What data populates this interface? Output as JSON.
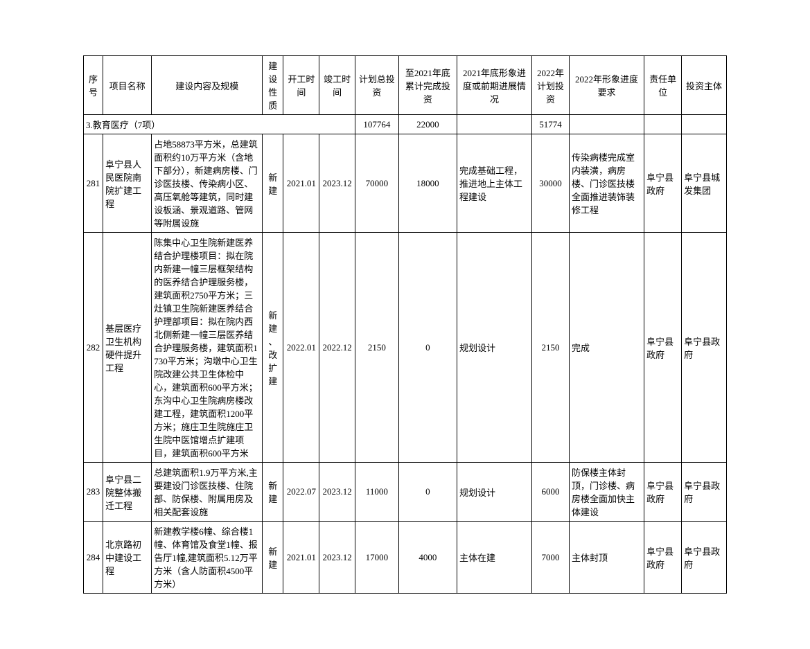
{
  "table": {
    "columns": [
      {
        "label": "序号",
        "width": 26
      },
      {
        "label": "项目名称",
        "width": 65
      },
      {
        "label": "建设内容及规模",
        "width": 148
      },
      {
        "label": "建设性质",
        "width": 28
      },
      {
        "label": "开工时间",
        "width": 48
      },
      {
        "label": "竣工时间",
        "width": 48
      },
      {
        "label": "计划总投资",
        "width": 58
      },
      {
        "label": "至2021年底累计完成投资",
        "width": 78
      },
      {
        "label": "2021年底形象进度或前期进展情况",
        "width": 100
      },
      {
        "label": "2022年计划投资",
        "width": 50
      },
      {
        "label": "2022年形象进度要求",
        "width": 100
      },
      {
        "label": "责任单位",
        "width": 50
      },
      {
        "label": "投资主体",
        "width": 60
      }
    ],
    "section": {
      "label": "3.教育医疗（7项）",
      "total_invest": "107764",
      "invest_2021": "22000",
      "plan_2022": "51774"
    },
    "rows": [
      {
        "seq": "281",
        "name": "阜宁县人民医院南院扩建工程",
        "content": "占地58873平方米，总建筑面积约10万平方米（含地下部分），新建病房楼、门诊医技楼、传染病小区、高压氧舱等建筑，同时建设板涵、景观道路、管网等附属设施",
        "nature": "新建",
        "start": "2021.01",
        "end": "2023.12",
        "total_invest": "70000",
        "invest_2021": "18000",
        "progress_2021": "完成基础工程，推进地上主体工程建设",
        "plan_2022": "30000",
        "req_2022": "传染病楼完成室内装潢，病房楼、门诊医技楼全面推进装饰装修工程",
        "unit": "阜宁县政府",
        "investor": "阜宁县城发集团"
      },
      {
        "seq": "282",
        "name": "基层医疗卫生机构硬件提升工程",
        "content": "陈集中心卫生院新建医养结合护理楼项目：拟在院内新建一幢三层框架结构的医养结合护理服务楼，建筑面积2750平方米；三灶镇卫生院新建医养结合护理部项目：拟在院内西北侧新建一幢三层医养结合护理服务楼，建筑面积1730平方米；沟墩中心卫生院改建公共卫生体检中心，建筑面积600平方米；东沟中心卫生院病房楼改建工程，建筑面积1200平方米；施庄卫生院施庄卫生院中医馆增点扩建项目，建筑面积600平方米",
        "nature": "新建、改扩建",
        "start": "2022.01",
        "end": "2022.12",
        "total_invest": "2150",
        "invest_2021": "0",
        "progress_2021": "规划设计",
        "plan_2022": "2150",
        "req_2022": "完成",
        "unit": "阜宁县政府",
        "investor": "阜宁县政府"
      },
      {
        "seq": "283",
        "name": "阜宁县二院整体搬迁工程",
        "content": "总建筑面积1.9万平方米,主要建设门诊医技楼、住院部、防保楼、附属用房及相关配套设施",
        "nature": "新建",
        "start": "2022.07",
        "end": "2023.12",
        "total_invest": "11000",
        "invest_2021": "0",
        "progress_2021": "规划设计",
        "plan_2022": "6000",
        "req_2022": "防保楼主体封顶，门诊楼、病房楼全面加快主体建设",
        "unit": "阜宁县政府",
        "investor": "阜宁县政府"
      },
      {
        "seq": "284",
        "name": "北京路初中建设工程",
        "content": "新建教学楼6幢、综合楼1幢、体育馆及食堂1幢、报告厅1幢,建筑面积5.12万平方米（含人防面积4500平方米）",
        "nature": "新建",
        "start": "2021.01",
        "end": "2023.12",
        "total_invest": "17000",
        "invest_2021": "4000",
        "progress_2021": "主体在建",
        "plan_2022": "7000",
        "req_2022": "主体封顶",
        "unit": "阜宁县政府",
        "investor": "阜宁县政府"
      }
    ]
  }
}
